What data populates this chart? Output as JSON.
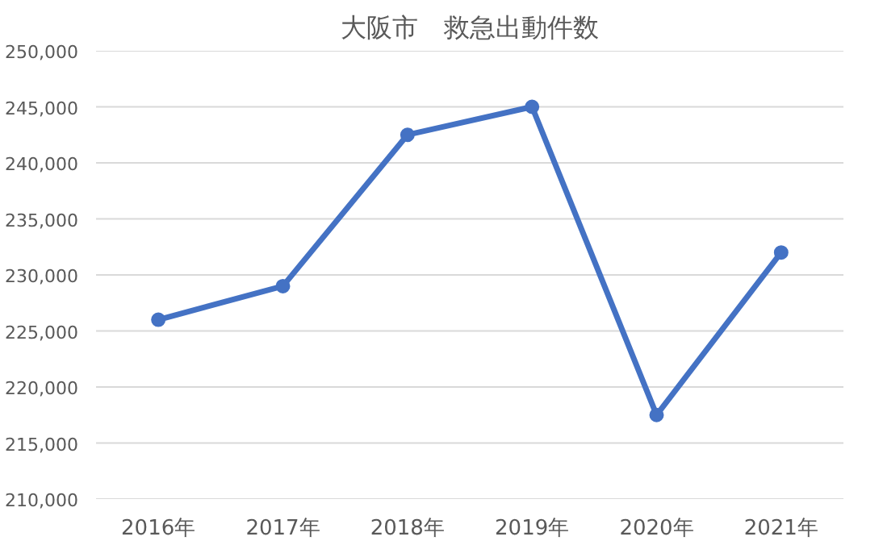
{
  "chart_data": {
    "type": "line",
    "title": "大阪市　救急出動件数",
    "categories": [
      "2016年",
      "2017年",
      "2018年",
      "2019年",
      "2020年",
      "2021年"
    ],
    "series": [
      {
        "color": "#4472c4",
        "values": [
          226000,
          229000,
          242500,
          245000,
          217500,
          232000
        ]
      }
    ],
    "ylim": [
      210000,
      250000
    ],
    "yticks": [
      {
        "value": 210000,
        "label": "210,000"
      },
      {
        "value": 215000,
        "label": "215,000"
      },
      {
        "value": 220000,
        "label": "220,000"
      },
      {
        "value": 225000,
        "label": "225,000"
      },
      {
        "value": 230000,
        "label": "230,000"
      },
      {
        "value": 235000,
        "label": "235,000"
      },
      {
        "value": 240000,
        "label": "240,000"
      },
      {
        "value": 245000,
        "label": "245,000"
      },
      {
        "value": 250000,
        "label": "250,000"
      }
    ],
    "grid": "y",
    "marker": "circle",
    "line_style": "solid"
  }
}
